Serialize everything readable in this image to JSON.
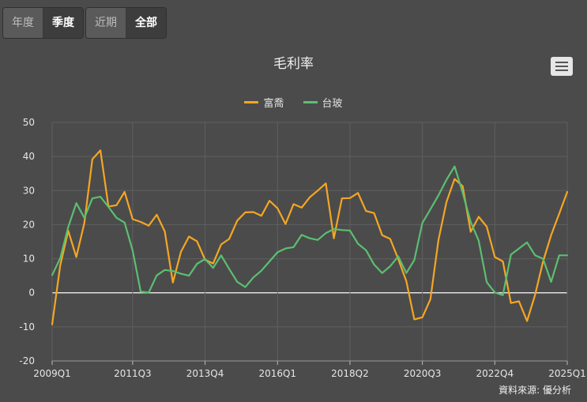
{
  "tabs": {
    "group1": [
      {
        "label": "年度",
        "active": false
      },
      {
        "label": "季度",
        "active": true
      }
    ],
    "group2": [
      {
        "label": "近期",
        "active": false
      },
      {
        "label": "全部",
        "active": true
      }
    ]
  },
  "chart_data": {
    "type": "line",
    "title": "毛利率",
    "xlabel": "",
    "ylabel": "",
    "ylim": [
      -20,
      50
    ],
    "yticks": [
      -20,
      -10,
      0,
      10,
      20,
      30,
      40,
      50
    ],
    "xtick_labels": [
      "2009Q1",
      "2011Q3",
      "2013Q4",
      "2016Q1",
      "2018Q2",
      "2020Q3",
      "2022Q4",
      "2025Q1"
    ],
    "xtick_indices": [
      0,
      10,
      19,
      28,
      37,
      46,
      55,
      64
    ],
    "grid": true,
    "legend_position": "top",
    "series": [
      {
        "name": "富喬",
        "color": "#f5a623",
        "values": [
          -9.3,
          8,
          18.2,
          10.5,
          20.5,
          39.2,
          41.8,
          25.3,
          25.7,
          29.6,
          21.6,
          20.8,
          19.7,
          22.9,
          18,
          3,
          12,
          16.5,
          15.1,
          9.7,
          8.6,
          14.2,
          15.8,
          21.2,
          23.6,
          23.7,
          22.6,
          27,
          24.8,
          20.2,
          26,
          25,
          28,
          30,
          32.1,
          16,
          27.7,
          27.8,
          29.3,
          24,
          23.4,
          16.9,
          15.8,
          9.9,
          3.4,
          -7.8,
          -7.2,
          -1.9,
          15.5,
          26.7,
          33.4,
          31.3,
          17.9,
          22.3,
          19.4,
          10.5,
          9.2,
          -3,
          -2.5,
          -8.3,
          -0.6,
          9.2,
          16.9,
          23.2,
          29.6
        ]
      },
      {
        "name": "台玻",
        "color": "#5bbf72",
        "values": [
          5.2,
          10.1,
          19.3,
          26.3,
          22,
          27.7,
          28.2,
          25.2,
          22,
          20.6,
          12.4,
          0.3,
          0.1,
          5.1,
          6.7,
          6.4,
          5.6,
          5,
          8.5,
          9.9,
          7.3,
          11,
          7,
          3.2,
          1.7,
          4.5,
          6.5,
          9.2,
          11.9,
          13,
          13.4,
          17,
          16,
          15.5,
          17.5,
          18.7,
          18.4,
          18.3,
          14.4,
          12.5,
          8.3,
          5.8,
          7.8,
          10.7,
          5.8,
          9.6,
          20.5,
          24.5,
          28.6,
          33.2,
          37.1,
          29.4,
          20.8,
          15.3,
          3.1,
          0.1,
          -0.7,
          11.2,
          13,
          14.8,
          11,
          10,
          3.2,
          11,
          11
        ]
      }
    ]
  },
  "source": {
    "text": "資料來源: 優分析"
  }
}
